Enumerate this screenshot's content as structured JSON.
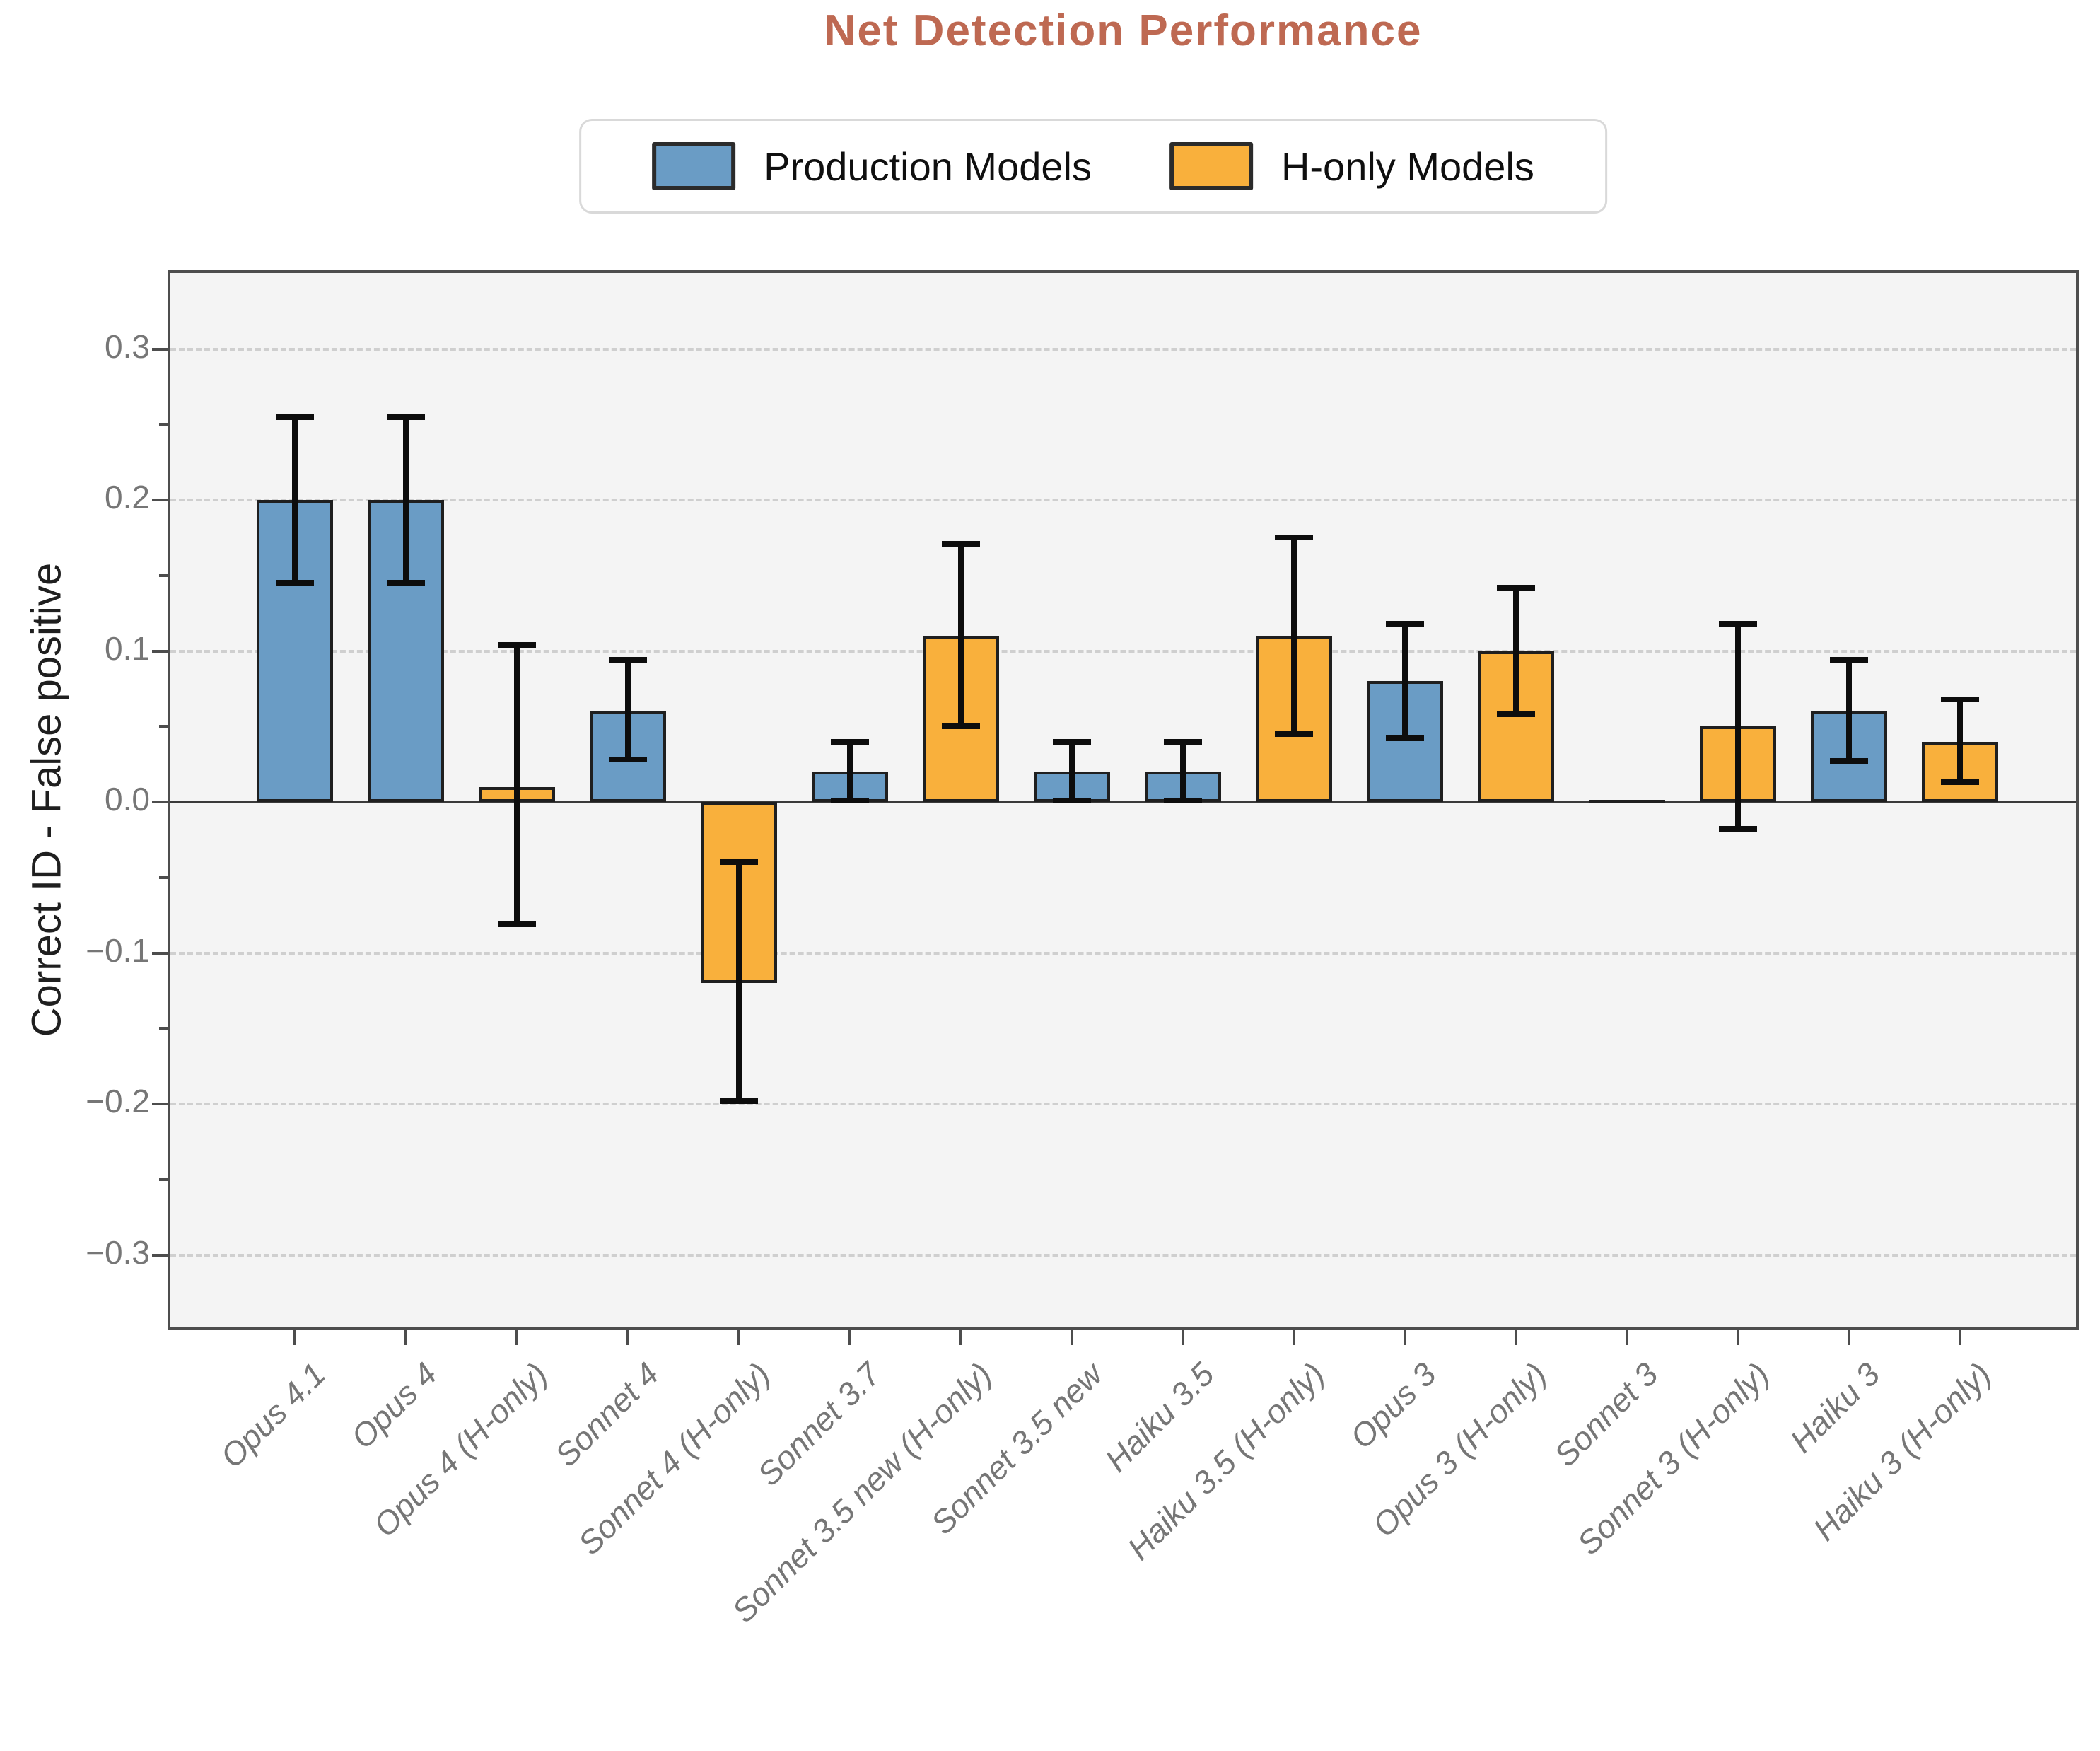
{
  "title": "Net Detection Performance",
  "legend": {
    "items": [
      {
        "label": "Production Models",
        "color": "#6A9CC5"
      },
      {
        "label": "H-only Models",
        "color": "#F9B03C"
      }
    ]
  },
  "colors": {
    "production": "#6A9CC5",
    "h_only": "#F9B03C",
    "bar_edge": "#1f1f1f",
    "error_bar": "#0d0d0d",
    "title": "#BE6952",
    "plot_background": "#f4f4f4",
    "gridline": "#cfcfcf",
    "spine": "#4d4d4d",
    "tick_label": "#767676"
  },
  "chart_data": {
    "type": "bar",
    "title": "Net Detection Performance",
    "xlabel": "",
    "ylabel": "Correct ID - False positive",
    "ylim": [
      -0.35,
      0.35
    ],
    "grid": true,
    "legend_position": "top-center",
    "y_tick_labels": [
      "0.3",
      "0.2",
      "0.1",
      "0.0",
      "−0.1",
      "−0.2",
      "−0.3"
    ],
    "y_tick_values": [
      0.3,
      0.2,
      0.1,
      0.0,
      -0.1,
      -0.2,
      -0.3
    ],
    "categories": [
      "Opus 4.1",
      "Opus 4",
      "Opus 4 (H-only)",
      "Sonnet 4",
      "Sonnet 4 (H-only)",
      "Sonnet 3.7",
      "Sonnet 3.5 new (H-only)",
      "Sonnet 3.5 new",
      "Haiku 3.5",
      "Haiku 3.5 (H-only)",
      "Opus 3",
      "Opus 3 (H-only)",
      "Sonnet 3",
      "Sonnet 3 (H-only)",
      "Haiku 3",
      "Haiku 3 (H-only)"
    ],
    "groups": [
      "production",
      "production",
      "h_only",
      "production",
      "h_only",
      "production",
      "h_only",
      "production",
      "production",
      "h_only",
      "production",
      "h_only",
      "production",
      "h_only",
      "production",
      "h_only"
    ],
    "values": [
      0.2,
      0.2,
      0.01,
      0.06,
      -0.12,
      0.02,
      0.11,
      0.02,
      0.02,
      0.11,
      0.08,
      0.1,
      0.0,
      0.05,
      0.06,
      0.04
    ],
    "error_low": [
      0.145,
      0.145,
      -0.081,
      0.028,
      -0.198,
      0.001,
      0.05,
      0.001,
      0.001,
      0.045,
      0.042,
      0.058,
      null,
      -0.018,
      0.027,
      0.013
    ],
    "error_high": [
      0.255,
      0.255,
      0.104,
      0.094,
      -0.04,
      0.04,
      0.171,
      0.04,
      0.04,
      0.175,
      0.118,
      0.142,
      null,
      0.118,
      0.094,
      0.068
    ],
    "series": [
      {
        "name": "Production Models",
        "values": [
          0.2,
          0.2,
          null,
          0.06,
          null,
          0.02,
          null,
          0.02,
          0.02,
          null,
          0.08,
          null,
          0.0,
          null,
          0.06,
          null
        ]
      },
      {
        "name": "H-only Models",
        "values": [
          null,
          null,
          0.01,
          null,
          -0.12,
          null,
          0.11,
          null,
          null,
          0.11,
          null,
          0.1,
          null,
          0.05,
          null,
          0.04
        ]
      }
    ]
  }
}
